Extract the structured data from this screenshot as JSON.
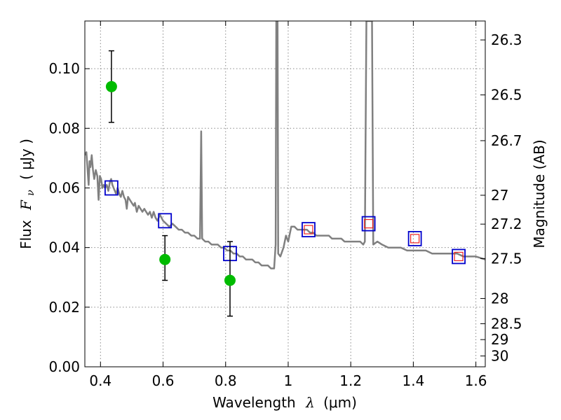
{
  "chart_data": {
    "type": "scatter",
    "xlabel_text": "Wavelength",
    "xlabel_symbol": "λ",
    "xlabel_unit": "(μm)",
    "ylabel_text": "Flux",
    "ylabel_symbol": "F",
    "ylabel_symbol_sub": "ν",
    "ylabel_unit": "( μJy )",
    "y2label": "Magnitude (AB)",
    "xlim": [
      0.35,
      1.63
    ],
    "ylim": [
      0.0,
      0.116
    ],
    "grid": true,
    "x_ticks": [
      {
        "value": 0.4,
        "label": "0.4"
      },
      {
        "value": 0.6,
        "label": "0.6"
      },
      {
        "value": 0.8,
        "label": "0.8"
      },
      {
        "value": 1.0,
        "label": "1"
      },
      {
        "value": 1.2,
        "label": "1.2"
      },
      {
        "value": 1.4,
        "label": "1.4"
      },
      {
        "value": 1.6,
        "label": "1.6"
      }
    ],
    "y_ticks": [
      {
        "value": 0.0,
        "label": "0.00"
      },
      {
        "value": 0.02,
        "label": "0.02"
      },
      {
        "value": 0.04,
        "label": "0.04"
      },
      {
        "value": 0.06,
        "label": "0.06"
      },
      {
        "value": 0.08,
        "label": "0.08"
      },
      {
        "value": 0.1,
        "label": "0.10"
      }
    ],
    "y2_ticks": [
      {
        "value": 26.3,
        "label": "26.3"
      },
      {
        "value": 26.5,
        "label": "26.5"
      },
      {
        "value": 26.7,
        "label": "26.7"
      },
      {
        "value": 27.0,
        "label": "27"
      },
      {
        "value": 27.2,
        "label": "27.2"
      },
      {
        "value": 27.5,
        "label": "27.5"
      },
      {
        "value": 28.0,
        "label": "28"
      },
      {
        "value": 28.5,
        "label": "28.5"
      },
      {
        "value": 29.0,
        "label": "29"
      },
      {
        "value": 30.0,
        "label": "30"
      }
    ],
    "colors": {
      "model": "#808080",
      "observed": "#00bb00",
      "model_band": "#0000cc",
      "model_band_inner": "#ee2222",
      "grid": "#8a8a8a"
    },
    "model_spectrum": [
      [
        0.35,
        0.071
      ],
      [
        0.355,
        0.072
      ],
      [
        0.36,
        0.064
      ],
      [
        0.362,
        0.061
      ],
      [
        0.365,
        0.069
      ],
      [
        0.368,
        0.067
      ],
      [
        0.372,
        0.071
      ],
      [
        0.376,
        0.066
      ],
      [
        0.38,
        0.063
      ],
      [
        0.385,
        0.066
      ],
      [
        0.39,
        0.064
      ],
      [
        0.394,
        0.056
      ],
      [
        0.398,
        0.064
      ],
      [
        0.402,
        0.063
      ],
      [
        0.406,
        0.06
      ],
      [
        0.41,
        0.061
      ],
      [
        0.415,
        0.06
      ],
      [
        0.42,
        0.061
      ],
      [
        0.425,
        0.059
      ],
      [
        0.43,
        0.062
      ],
      [
        0.434,
        0.063
      ],
      [
        0.438,
        0.061
      ],
      [
        0.442,
        0.06
      ],
      [
        0.446,
        0.059
      ],
      [
        0.45,
        0.058
      ],
      [
        0.455,
        0.06
      ],
      [
        0.46,
        0.058
      ],
      [
        0.465,
        0.057
      ],
      [
        0.47,
        0.059
      ],
      [
        0.475,
        0.057
      ],
      [
        0.48,
        0.056
      ],
      [
        0.484,
        0.053
      ],
      [
        0.488,
        0.057
      ],
      [
        0.494,
        0.056
      ],
      [
        0.5,
        0.055
      ],
      [
        0.506,
        0.054
      ],
      [
        0.51,
        0.055
      ],
      [
        0.516,
        0.052
      ],
      [
        0.522,
        0.054
      ],
      [
        0.528,
        0.053
      ],
      [
        0.534,
        0.052
      ],
      [
        0.54,
        0.053
      ],
      [
        0.546,
        0.052
      ],
      [
        0.552,
        0.051
      ],
      [
        0.558,
        0.052
      ],
      [
        0.564,
        0.05
      ],
      [
        0.57,
        0.052
      ],
      [
        0.576,
        0.05
      ],
      [
        0.582,
        0.049
      ],
      [
        0.59,
        0.051
      ],
      [
        0.6,
        0.049
      ],
      [
        0.61,
        0.048
      ],
      [
        0.62,
        0.047
      ],
      [
        0.63,
        0.048
      ],
      [
        0.64,
        0.047
      ],
      [
        0.65,
        0.046
      ],
      [
        0.66,
        0.046
      ],
      [
        0.67,
        0.045
      ],
      [
        0.68,
        0.045
      ],
      [
        0.69,
        0.044
      ],
      [
        0.7,
        0.044
      ],
      [
        0.71,
        0.043
      ],
      [
        0.718,
        0.043
      ],
      [
        0.722,
        0.079
      ],
      [
        0.725,
        0.043
      ],
      [
        0.735,
        0.042
      ],
      [
        0.745,
        0.042
      ],
      [
        0.755,
        0.041
      ],
      [
        0.765,
        0.041
      ],
      [
        0.775,
        0.041
      ],
      [
        0.785,
        0.04
      ],
      [
        0.795,
        0.04
      ],
      [
        0.805,
        0.039
      ],
      [
        0.815,
        0.039
      ],
      [
        0.825,
        0.038
      ],
      [
        0.835,
        0.038
      ],
      [
        0.845,
        0.037
      ],
      [
        0.855,
        0.037
      ],
      [
        0.865,
        0.036
      ],
      [
        0.875,
        0.036
      ],
      [
        0.885,
        0.036
      ],
      [
        0.895,
        0.035
      ],
      [
        0.905,
        0.035
      ],
      [
        0.915,
        0.034
      ],
      [
        0.925,
        0.034
      ],
      [
        0.935,
        0.034
      ],
      [
        0.945,
        0.033
      ],
      [
        0.955,
        0.033
      ],
      [
        0.96,
        0.041
      ],
      [
        0.962,
        0.116
      ],
      [
        0.966,
        0.116
      ],
      [
        0.968,
        0.038
      ],
      [
        0.975,
        0.037
      ],
      [
        0.985,
        0.04
      ],
      [
        0.993,
        0.044
      ],
      [
        1.0,
        0.042
      ],
      [
        1.01,
        0.047
      ],
      [
        1.02,
        0.047
      ],
      [
        1.03,
        0.046
      ],
      [
        1.04,
        0.046
      ],
      [
        1.05,
        0.046
      ],
      [
        1.06,
        0.046
      ],
      [
        1.07,
        0.045
      ],
      [
        1.08,
        0.045
      ],
      [
        1.09,
        0.044
      ],
      [
        1.1,
        0.044
      ],
      [
        1.11,
        0.044
      ],
      [
        1.12,
        0.044
      ],
      [
        1.13,
        0.044
      ],
      [
        1.14,
        0.043
      ],
      [
        1.15,
        0.043
      ],
      [
        1.16,
        0.043
      ],
      [
        1.17,
        0.043
      ],
      [
        1.18,
        0.042
      ],
      [
        1.19,
        0.042
      ],
      [
        1.2,
        0.042
      ],
      [
        1.21,
        0.042
      ],
      [
        1.22,
        0.042
      ],
      [
        1.23,
        0.042
      ],
      [
        1.24,
        0.041
      ],
      [
        1.245,
        0.042
      ],
      [
        1.25,
        0.116
      ],
      [
        1.268,
        0.116
      ],
      [
        1.272,
        0.041
      ],
      [
        1.285,
        0.042
      ],
      [
        1.3,
        0.041
      ],
      [
        1.32,
        0.04
      ],
      [
        1.34,
        0.04
      ],
      [
        1.36,
        0.04
      ],
      [
        1.38,
        0.039
      ],
      [
        1.4,
        0.039
      ],
      [
        1.42,
        0.039
      ],
      [
        1.44,
        0.039
      ],
      [
        1.46,
        0.038
      ],
      [
        1.48,
        0.038
      ],
      [
        1.5,
        0.038
      ],
      [
        1.52,
        0.038
      ],
      [
        1.54,
        0.038
      ],
      [
        1.56,
        0.037
      ],
      [
        1.58,
        0.037
      ],
      [
        1.6,
        0.037
      ],
      [
        1.63,
        0.036
      ]
    ],
    "observed_points": [
      {
        "x": 0.435,
        "y": 0.094,
        "yerr_low": 0.082,
        "yerr_high": 0.106
      },
      {
        "x": 0.606,
        "y": 0.036,
        "yerr_low": 0.029,
        "yerr_high": 0.044
      },
      {
        "x": 0.814,
        "y": 0.029,
        "yerr_low": 0.017,
        "yerr_high": 0.042
      }
    ],
    "model_band_points": [
      {
        "x": 0.435,
        "y": 0.06,
        "inner": false
      },
      {
        "x": 0.606,
        "y": 0.049,
        "inner": false
      },
      {
        "x": 0.814,
        "y": 0.038,
        "inner": false
      },
      {
        "x": 1.065,
        "y": 0.046,
        "inner": true
      },
      {
        "x": 1.257,
        "y": 0.048,
        "inner": true
      },
      {
        "x": 1.405,
        "y": 0.043,
        "inner": true
      },
      {
        "x": 1.545,
        "y": 0.037,
        "inner": true
      }
    ]
  }
}
